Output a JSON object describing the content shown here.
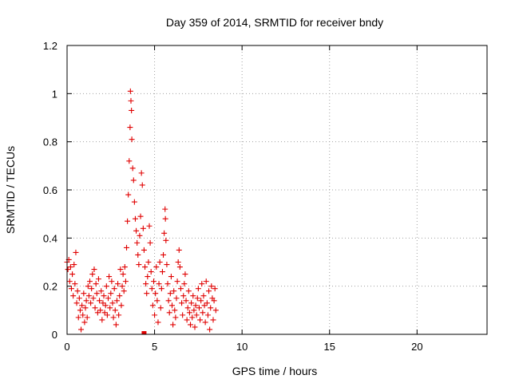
{
  "chart_data": {
    "type": "scatter",
    "title": "Day 359 of 2014, SRMTID for receiver bndy",
    "xlabel": "GPS time / hours",
    "ylabel": "SRMTID / TECUs",
    "xlim": [
      0,
      24
    ],
    "ylim": [
      0,
      1.2
    ],
    "xticks": [
      0,
      5,
      10,
      15,
      20
    ],
    "xtick_labels": [
      "0",
      "5",
      "10",
      "15",
      "20"
    ],
    "yticks": [
      0,
      0.2,
      0.4,
      0.6,
      0.8,
      1.0,
      1.2
    ],
    "ytick_labels": [
      "0",
      "0.2",
      "0.4",
      "0.6",
      "0.8",
      "1",
      "1.2"
    ],
    "grid": true,
    "marker": "+",
    "series": [
      {
        "name": "bndy",
        "color": "#e00000",
        "points": [
          [
            0.0,
            0.3
          ],
          [
            0.05,
            0.27
          ],
          [
            0.1,
            0.31
          ],
          [
            0.15,
            0.22
          ],
          [
            0.2,
            0.28
          ],
          [
            0.25,
            0.19
          ],
          [
            0.3,
            0.25
          ],
          [
            0.35,
            0.16
          ],
          [
            0.4,
            0.29
          ],
          [
            0.45,
            0.21
          ],
          [
            0.5,
            0.34
          ],
          [
            0.55,
            0.13
          ],
          [
            0.6,
            0.18
          ],
          [
            0.65,
            0.07
          ],
          [
            0.7,
            0.15
          ],
          [
            0.75,
            0.1
          ],
          [
            0.8,
            0.02
          ],
          [
            0.85,
            0.12
          ],
          [
            0.9,
            0.08
          ],
          [
            0.95,
            0.17
          ],
          [
            1.0,
            0.05
          ],
          [
            1.05,
            0.11
          ],
          [
            1.1,
            0.14
          ],
          [
            1.15,
            0.07
          ],
          [
            1.2,
            0.2
          ],
          [
            1.25,
            0.16
          ],
          [
            1.3,
            0.22
          ],
          [
            1.35,
            0.13
          ],
          [
            1.4,
            0.19
          ],
          [
            1.45,
            0.25
          ],
          [
            1.5,
            0.15
          ],
          [
            1.55,
            0.27
          ],
          [
            1.6,
            0.11
          ],
          [
            1.65,
            0.21
          ],
          [
            1.7,
            0.17
          ],
          [
            1.75,
            0.09
          ],
          [
            1.8,
            0.23
          ],
          [
            1.85,
            0.14
          ],
          [
            1.9,
            0.1
          ],
          [
            1.95,
            0.18
          ],
          [
            2.0,
            0.06
          ],
          [
            2.05,
            0.13
          ],
          [
            2.1,
            0.16
          ],
          [
            2.15,
            0.09
          ],
          [
            2.2,
            0.12
          ],
          [
            2.25,
            0.2
          ],
          [
            2.3,
            0.08
          ],
          [
            2.35,
            0.15
          ],
          [
            2.4,
            0.24
          ],
          [
            2.45,
            0.11
          ],
          [
            2.5,
            0.17
          ],
          [
            2.55,
            0.22
          ],
          [
            2.6,
            0.13
          ],
          [
            2.65,
            0.07
          ],
          [
            2.7,
            0.19
          ],
          [
            2.75,
            0.1
          ],
          [
            2.8,
            0.04
          ],
          [
            2.85,
            0.14
          ],
          [
            2.9,
            0.21
          ],
          [
            2.95,
            0.08
          ],
          [
            3.0,
            0.16
          ],
          [
            3.05,
            0.27
          ],
          [
            3.1,
            0.12
          ],
          [
            3.15,
            0.2
          ],
          [
            3.2,
            0.25
          ],
          [
            3.25,
            0.18
          ],
          [
            3.3,
            0.28
          ],
          [
            3.35,
            0.22
          ],
          [
            3.4,
            0.36
          ],
          [
            3.45,
            0.47
          ],
          [
            3.5,
            0.58
          ],
          [
            3.55,
            0.72
          ],
          [
            3.6,
            0.86
          ],
          [
            3.62,
            1.01
          ],
          [
            3.65,
            0.97
          ],
          [
            3.68,
            0.93
          ],
          [
            3.7,
            0.81
          ],
          [
            3.75,
            0.69
          ],
          [
            3.8,
            0.64
          ],
          [
            3.85,
            0.55
          ],
          [
            3.9,
            0.48
          ],
          [
            3.95,
            0.43
          ],
          [
            4.0,
            0.38
          ],
          [
            4.05,
            0.33
          ],
          [
            4.1,
            0.29
          ],
          [
            4.15,
            0.41
          ],
          [
            4.2,
            0.49
          ],
          [
            4.25,
            0.67
          ],
          [
            4.3,
            0.62
          ],
          [
            4.35,
            0.44
          ],
          [
            4.4,
            0.35
          ],
          [
            4.45,
            0.28
          ],
          [
            4.5,
            0.21
          ],
          [
            4.55,
            0.17
          ],
          [
            4.6,
            0.24
          ],
          [
            4.65,
            0.3
          ],
          [
            4.7,
            0.45
          ],
          [
            4.75,
            0.38
          ],
          [
            4.8,
            0.26
          ],
          [
            4.85,
            0.19
          ],
          [
            4.9,
            0.12
          ],
          [
            4.95,
            0.22
          ],
          [
            5.0,
            0.08
          ],
          [
            5.05,
            0.17
          ],
          [
            5.1,
            0.28
          ],
          [
            5.15,
            0.14
          ],
          [
            5.2,
            0.05
          ],
          [
            5.25,
            0.21
          ],
          [
            5.3,
            0.3
          ],
          [
            5.35,
            0.11
          ],
          [
            5.4,
            0.19
          ],
          [
            5.45,
            0.26
          ],
          [
            5.5,
            0.33
          ],
          [
            5.55,
            0.42
          ],
          [
            5.6,
            0.52
          ],
          [
            5.62,
            0.48
          ],
          [
            5.65,
            0.39
          ],
          [
            5.7,
            0.29
          ],
          [
            5.75,
            0.21
          ],
          [
            5.8,
            0.14
          ],
          [
            5.85,
            0.09
          ],
          [
            5.9,
            0.17
          ],
          [
            5.95,
            0.24
          ],
          [
            6.0,
            0.12
          ],
          [
            6.05,
            0.04
          ],
          [
            6.1,
            0.18
          ],
          [
            6.15,
            0.1
          ],
          [
            6.2,
            0.07
          ],
          [
            6.25,
            0.15
          ],
          [
            6.3,
            0.22
          ],
          [
            6.35,
            0.3
          ],
          [
            6.4,
            0.35
          ],
          [
            6.45,
            0.28
          ],
          [
            6.5,
            0.19
          ],
          [
            6.55,
            0.13
          ],
          [
            6.6,
            0.08
          ],
          [
            6.65,
            0.16
          ],
          [
            6.7,
            0.21
          ],
          [
            6.75,
            0.25
          ],
          [
            6.8,
            0.14
          ],
          [
            6.85,
            0.06
          ],
          [
            6.9,
            0.11
          ],
          [
            6.95,
            0.18
          ],
          [
            7.0,
            0.09
          ],
          [
            7.05,
            0.04
          ],
          [
            7.1,
            0.13
          ],
          [
            7.15,
            0.07
          ],
          [
            7.2,
            0.16
          ],
          [
            7.25,
            0.1
          ],
          [
            7.3,
            0.03
          ],
          [
            7.35,
            0.12
          ],
          [
            7.4,
            0.08
          ],
          [
            7.45,
            0.15
          ],
          [
            7.5,
            0.19
          ],
          [
            7.55,
            0.11
          ],
          [
            7.6,
            0.06
          ],
          [
            7.65,
            0.14
          ],
          [
            7.7,
            0.21
          ],
          [
            7.75,
            0.09
          ],
          [
            7.8,
            0.16
          ],
          [
            7.85,
            0.12
          ],
          [
            7.9,
            0.05
          ],
          [
            7.95,
            0.22
          ],
          [
            8.0,
            0.13
          ],
          [
            8.05,
            0.08
          ],
          [
            8.1,
            0.18
          ],
          [
            8.15,
            0.02
          ],
          [
            8.2,
            0.11
          ],
          [
            8.25,
            0.2
          ],
          [
            8.3,
            0.15
          ],
          [
            8.35,
            0.06
          ],
          [
            8.4,
            0.14
          ],
          [
            8.45,
            0.19
          ],
          [
            8.5,
            0.1
          ]
        ]
      }
    ],
    "outlier_points": [
      {
        "x": 4.4,
        "y": 0.0,
        "marker": "square"
      }
    ]
  }
}
